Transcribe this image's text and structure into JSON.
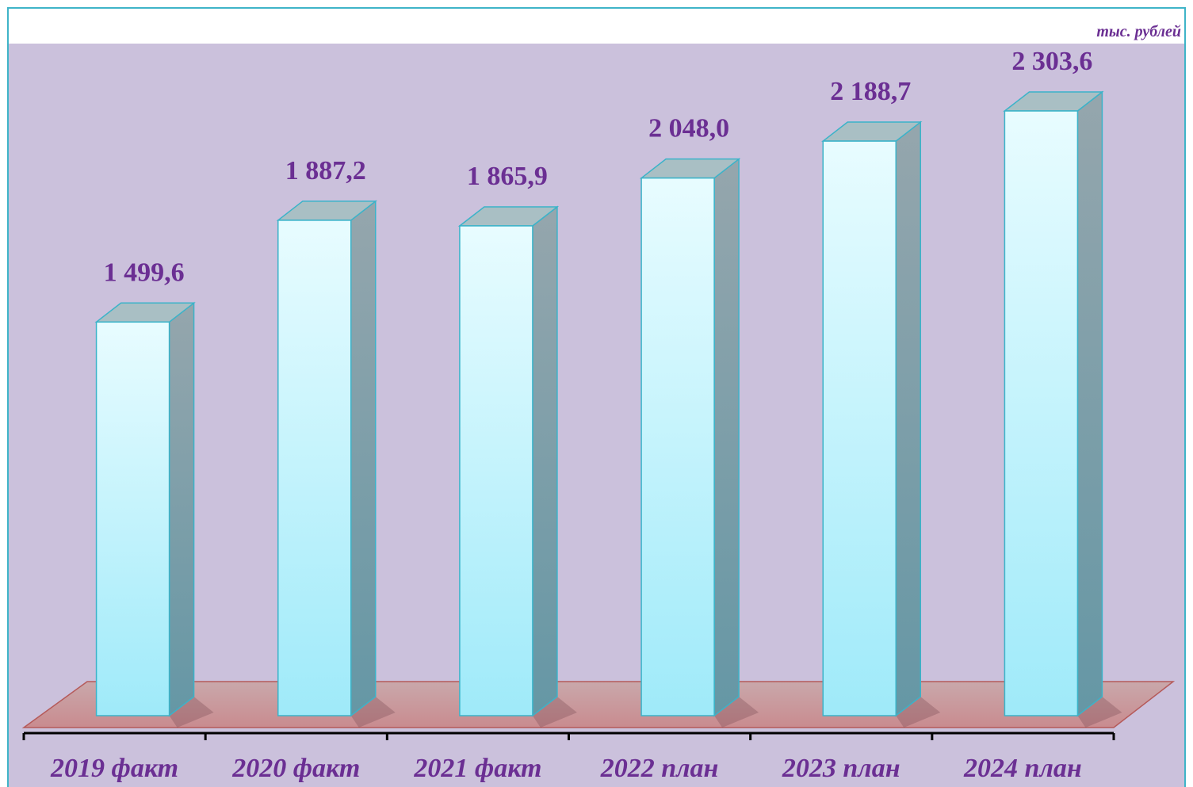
{
  "chart_data": {
    "type": "bar3d",
    "unit": "тыс. рублей",
    "categories": [
      "2019 факт",
      "2020 факт",
      "2021 факт",
      "2022 план",
      "2023 план",
      "2024 план"
    ],
    "values": [
      1499.6,
      1887.2,
      1865.9,
      2048.0,
      2188.7,
      2303.6
    ],
    "value_labels": [
      "1 499,6",
      "1 887,2",
      "1 865,9",
      "2 048,0",
      "2 188,7",
      "2 303,6"
    ],
    "color": "#a6ecfa"
  }
}
